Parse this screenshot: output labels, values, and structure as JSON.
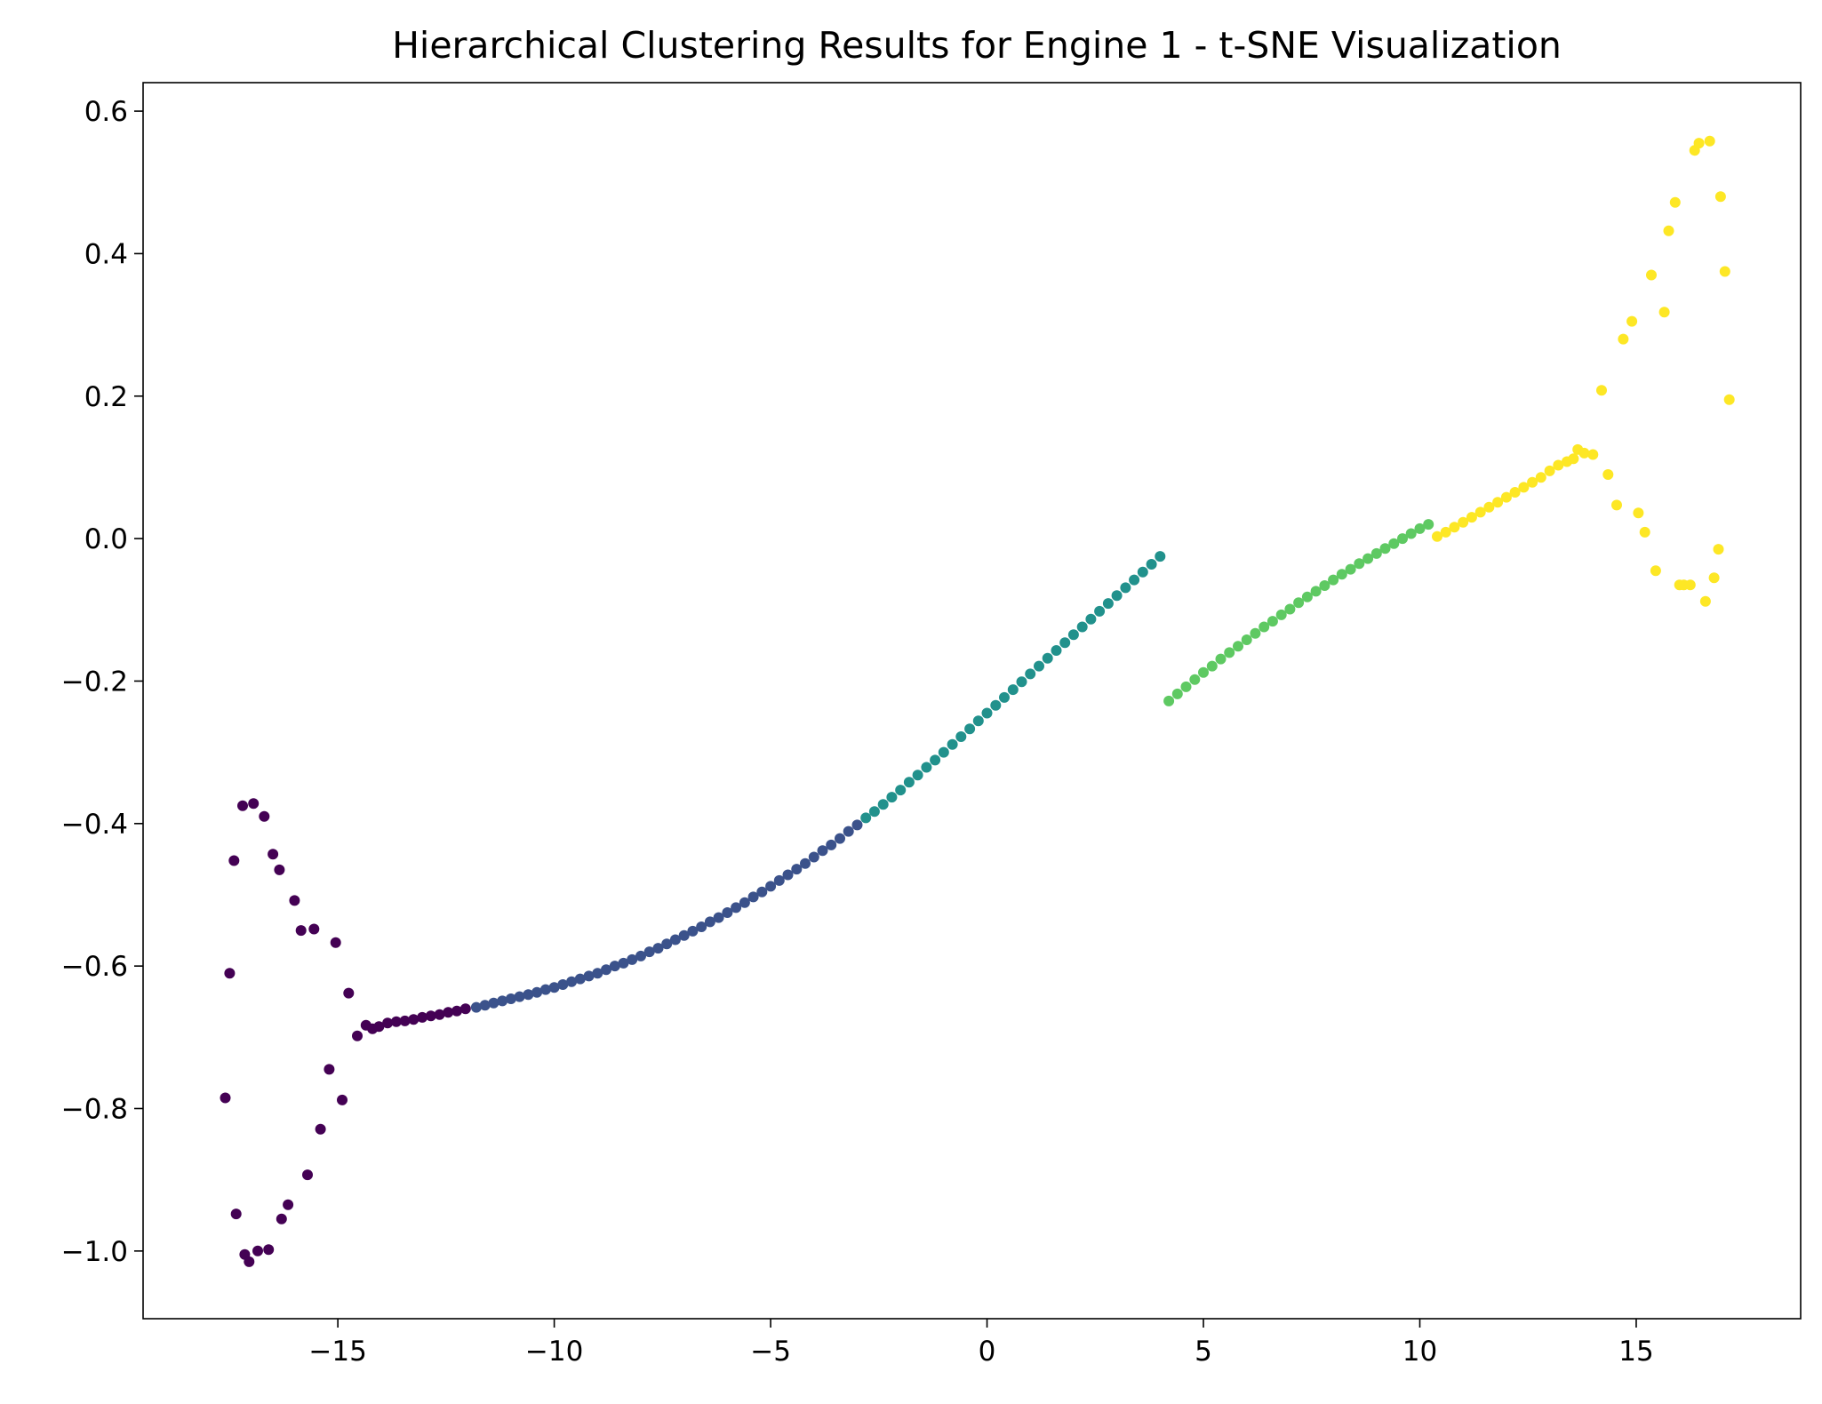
{
  "chart_data": {
    "type": "scatter",
    "title": "Hierarchical Clustering Results for Engine 1 - t-SNE Visualization",
    "xlabel": "",
    "ylabel": "",
    "xlim": [
      -19.5,
      18.8
    ],
    "ylim": [
      -1.095,
      0.64
    ],
    "xticks": [
      -15,
      -10,
      -5,
      0,
      5,
      10,
      15
    ],
    "xtick_labels": [
      "−15",
      "−10",
      "−5",
      "0",
      "5",
      "10",
      "15"
    ],
    "yticks": [
      -1.0,
      -0.8,
      -0.6,
      -0.4,
      -0.2,
      0.0,
      0.2,
      0.4,
      0.6
    ],
    "ytick_labels": [
      "−1.0",
      "−0.8",
      "−0.6",
      "−0.4",
      "−0.2",
      "0.0",
      "0.2",
      "0.4",
      "0.6"
    ],
    "grid": false,
    "legend": "none",
    "clusters": [
      {
        "color": "#440154",
        "points": [
          [
            -17.6,
            -0.785
          ],
          [
            -17.5,
            -0.61
          ],
          [
            -17.4,
            -0.452
          ],
          [
            -17.35,
            -0.948
          ],
          [
            -17.2,
            -0.375
          ],
          [
            -17.15,
            -1.005
          ],
          [
            -17.05,
            -1.015
          ],
          [
            -16.95,
            -0.372
          ],
          [
            -16.85,
            -1.0
          ],
          [
            -16.7,
            -0.39
          ],
          [
            -16.6,
            -0.998
          ],
          [
            -16.5,
            -0.443
          ],
          [
            -16.35,
            -0.465
          ],
          [
            -16.3,
            -0.955
          ],
          [
            -16.15,
            -0.935
          ],
          [
            -16.0,
            -0.508
          ],
          [
            -15.85,
            -0.55
          ],
          [
            -15.7,
            -0.893
          ],
          [
            -15.55,
            -0.548
          ],
          [
            -15.4,
            -0.829
          ],
          [
            -15.2,
            -0.745
          ],
          [
            -15.05,
            -0.567
          ],
          [
            -14.9,
            -0.788
          ],
          [
            -14.75,
            -0.638
          ],
          [
            -14.55,
            -0.698
          ],
          [
            -14.35,
            -0.683
          ],
          [
            -14.2,
            -0.688
          ],
          [
            -14.05,
            -0.685
          ],
          [
            -13.85,
            -0.68
          ],
          [
            -13.65,
            -0.678
          ],
          [
            -13.45,
            -0.677
          ],
          [
            -13.25,
            -0.675
          ],
          [
            -13.05,
            -0.672
          ],
          [
            -12.85,
            -0.67
          ],
          [
            -12.65,
            -0.668
          ],
          [
            -12.45,
            -0.665
          ],
          [
            -12.25,
            -0.663
          ],
          [
            -12.05,
            -0.66
          ]
        ]
      },
      {
        "color": "#3b528b",
        "points": [
          [
            -11.8,
            -0.658
          ],
          [
            -11.6,
            -0.655
          ],
          [
            -11.4,
            -0.652
          ],
          [
            -11.2,
            -0.649
          ],
          [
            -11.0,
            -0.646
          ],
          [
            -10.8,
            -0.643
          ],
          [
            -10.6,
            -0.64
          ],
          [
            -10.4,
            -0.637
          ],
          [
            -10.2,
            -0.633
          ],
          [
            -10.0,
            -0.63
          ],
          [
            -9.8,
            -0.626
          ],
          [
            -9.6,
            -0.622
          ],
          [
            -9.4,
            -0.618
          ],
          [
            -9.2,
            -0.614
          ],
          [
            -9.0,
            -0.61
          ],
          [
            -8.8,
            -0.605
          ],
          [
            -8.6,
            -0.6
          ],
          [
            -8.4,
            -0.596
          ],
          [
            -8.2,
            -0.591
          ],
          [
            -8.0,
            -0.586
          ],
          [
            -7.8,
            -0.58
          ],
          [
            -7.6,
            -0.575
          ],
          [
            -7.4,
            -0.569
          ],
          [
            -7.2,
            -0.563
          ],
          [
            -7.0,
            -0.557
          ],
          [
            -6.8,
            -0.551
          ],
          [
            -6.6,
            -0.545
          ],
          [
            -6.4,
            -0.538
          ],
          [
            -6.2,
            -0.532
          ],
          [
            -6.0,
            -0.525
          ],
          [
            -5.8,
            -0.518
          ],
          [
            -5.6,
            -0.511
          ],
          [
            -5.4,
            -0.503
          ],
          [
            -5.2,
            -0.496
          ],
          [
            -5.0,
            -0.488
          ],
          [
            -4.8,
            -0.48
          ],
          [
            -4.6,
            -0.472
          ],
          [
            -4.4,
            -0.464
          ],
          [
            -4.2,
            -0.456
          ],
          [
            -4.0,
            -0.447
          ],
          [
            -3.8,
            -0.438
          ],
          [
            -3.6,
            -0.43
          ],
          [
            -3.4,
            -0.421
          ],
          [
            -3.2,
            -0.411
          ],
          [
            -3.0,
            -0.402
          ]
        ]
      },
      {
        "color": "#21918c",
        "points": [
          [
            -2.8,
            -0.392
          ],
          [
            -2.6,
            -0.383
          ],
          [
            -2.4,
            -0.373
          ],
          [
            -2.2,
            -0.363
          ],
          [
            -2.0,
            -0.353
          ],
          [
            -1.8,
            -0.342
          ],
          [
            -1.6,
            -0.332
          ],
          [
            -1.4,
            -0.321
          ],
          [
            -1.2,
            -0.311
          ],
          [
            -1.0,
            -0.3
          ],
          [
            -0.8,
            -0.289
          ],
          [
            -0.6,
            -0.278
          ],
          [
            -0.4,
            -0.267
          ],
          [
            -0.2,
            -0.256
          ],
          [
            0.0,
            -0.245
          ],
          [
            0.2,
            -0.234
          ],
          [
            0.4,
            -0.223
          ],
          [
            0.6,
            -0.212
          ],
          [
            0.8,
            -0.201
          ],
          [
            1.0,
            -0.19
          ],
          [
            1.2,
            -0.179
          ],
          [
            1.4,
            -0.168
          ],
          [
            1.6,
            -0.157
          ],
          [
            1.8,
            -0.146
          ],
          [
            2.0,
            -0.135
          ],
          [
            2.2,
            -0.124
          ],
          [
            2.4,
            -0.113
          ],
          [
            2.6,
            -0.102
          ],
          [
            2.8,
            -0.091
          ],
          [
            3.0,
            -0.08
          ],
          [
            3.2,
            -0.069
          ],
          [
            3.4,
            -0.058
          ],
          [
            3.6,
            -0.047
          ],
          [
            3.8,
            -0.036
          ],
          [
            4.0,
            -0.025
          ]
        ]
      },
      {
        "color": "#5ec962",
        "points": [
          [
            4.2,
            -0.228
          ],
          [
            4.4,
            -0.218
          ],
          [
            4.6,
            -0.208
          ],
          [
            4.8,
            -0.198
          ],
          [
            5.0,
            -0.188
          ],
          [
            5.2,
            -0.179
          ],
          [
            5.4,
            -0.169
          ],
          [
            5.6,
            -0.16
          ],
          [
            5.8,
            -0.151
          ],
          [
            6.0,
            -0.142
          ],
          [
            6.2,
            -0.133
          ],
          [
            6.4,
            -0.124
          ],
          [
            6.6,
            -0.116
          ],
          [
            6.8,
            -0.107
          ],
          [
            7.0,
            -0.099
          ],
          [
            7.2,
            -0.09
          ],
          [
            7.4,
            -0.082
          ],
          [
            7.6,
            -0.074
          ],
          [
            7.8,
            -0.066
          ],
          [
            8.0,
            -0.058
          ],
          [
            8.2,
            -0.05
          ],
          [
            8.4,
            -0.043
          ],
          [
            8.6,
            -0.035
          ],
          [
            8.8,
            -0.028
          ],
          [
            9.0,
            -0.021
          ],
          [
            9.2,
            -0.014
          ],
          [
            9.4,
            -0.007
          ],
          [
            9.6,
            -0.0
          ],
          [
            9.8,
            0.007
          ],
          [
            10.0,
            0.014
          ],
          [
            10.2,
            0.02
          ]
        ]
      },
      {
        "color": "#fde725",
        "points": [
          [
            10.4,
            0.003
          ],
          [
            10.6,
            0.009
          ],
          [
            10.8,
            0.016
          ],
          [
            11.0,
            0.023
          ],
          [
            11.2,
            0.03
          ],
          [
            11.4,
            0.037
          ],
          [
            11.6,
            0.044
          ],
          [
            11.8,
            0.051
          ],
          [
            12.0,
            0.058
          ],
          [
            12.2,
            0.065
          ],
          [
            12.4,
            0.072
          ],
          [
            12.6,
            0.079
          ],
          [
            12.8,
            0.086
          ],
          [
            13.0,
            0.095
          ],
          [
            13.2,
            0.103
          ],
          [
            13.4,
            0.108
          ],
          [
            13.55,
            0.112
          ],
          [
            13.65,
            0.125
          ],
          [
            13.8,
            0.12
          ],
          [
            14.0,
            0.118
          ],
          [
            14.2,
            0.208
          ],
          [
            14.35,
            0.09
          ],
          [
            14.55,
            0.047
          ],
          [
            14.7,
            0.28
          ],
          [
            14.9,
            0.305
          ],
          [
            15.05,
            0.036
          ],
          [
            15.2,
            0.009
          ],
          [
            15.35,
            0.37
          ],
          [
            15.45,
            -0.045
          ],
          [
            15.65,
            0.318
          ],
          [
            15.75,
            0.432
          ],
          [
            15.9,
            0.472
          ],
          [
            16.0,
            -0.065
          ],
          [
            16.1,
            -0.065
          ],
          [
            16.25,
            -0.065
          ],
          [
            16.35,
            0.545
          ],
          [
            16.45,
            0.555
          ],
          [
            16.6,
            -0.088
          ],
          [
            16.7,
            0.558
          ],
          [
            16.8,
            -0.055
          ],
          [
            16.9,
            -0.015
          ],
          [
            16.95,
            0.48
          ],
          [
            17.05,
            0.375
          ],
          [
            17.15,
            0.195
          ]
        ]
      }
    ]
  }
}
